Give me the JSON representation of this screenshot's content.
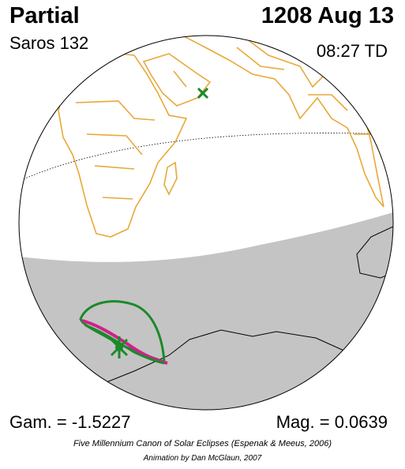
{
  "header": {
    "eclipse_type": "Partial",
    "date": "1208 Aug 13",
    "saros": "Saros 132",
    "time": "08:27 TD"
  },
  "footer": {
    "gamma": "Gam. = -1.5227",
    "magnitude": "Mag. = 0.0639",
    "credit": "Five Millennium Canon of Solar Eclipses (Espenak & Meeus, 2006)",
    "animation_credit": "Animation by Dan McGlaun, 2007"
  },
  "colors": {
    "land_border": "#e8a838",
    "coast": "#000000",
    "night_shade": "#c4c4c4",
    "penumbra_path": "#1a8a2a",
    "limit_curve": "#d0208c",
    "marker": "#1a8a2a"
  },
  "icons": {
    "subsolar_marker": "x-marker-icon",
    "greatest_eclipse_marker": "star-marker-icon"
  }
}
